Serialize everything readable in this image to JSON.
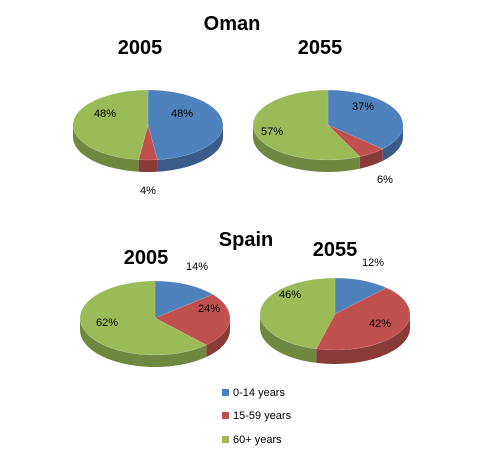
{
  "colors": {
    "0-14 years": "#4f81bd",
    "15-59 years": "#c0504d",
    "60+ years": "#9bbb59"
  },
  "legend": [
    "0-14 years",
    "15-59 years",
    "60+ years"
  ],
  "chart_data": [
    {
      "type": "pie",
      "country": "Oman",
      "title": "2005",
      "labels": [
        "0-14 years",
        "15-59 years",
        "60+ years"
      ],
      "values": [
        48,
        4,
        48
      ],
      "value_labels": [
        "48%",
        "4%",
        "48%"
      ]
    },
    {
      "type": "pie",
      "country": "Oman",
      "title": "2055",
      "labels": [
        "0-14 years",
        "15-59 years",
        "60+ years"
      ],
      "values": [
        37,
        6,
        57
      ],
      "value_labels": [
        "37%",
        "6%",
        "57%"
      ]
    },
    {
      "type": "pie",
      "country": "Spain",
      "title": "2005",
      "labels": [
        "0-14 years",
        "15-59 years",
        "60+ years"
      ],
      "values": [
        14,
        24,
        62
      ],
      "value_labels": [
        "14%",
        "24%",
        "62%"
      ]
    },
    {
      "type": "pie",
      "country": "Spain",
      "title": "2055",
      "labels": [
        "0-14 years",
        "15-59 years",
        "60+ years"
      ],
      "values": [
        12,
        42,
        46
      ],
      "value_labels": [
        "12%",
        "42%",
        "46%"
      ]
    }
  ]
}
